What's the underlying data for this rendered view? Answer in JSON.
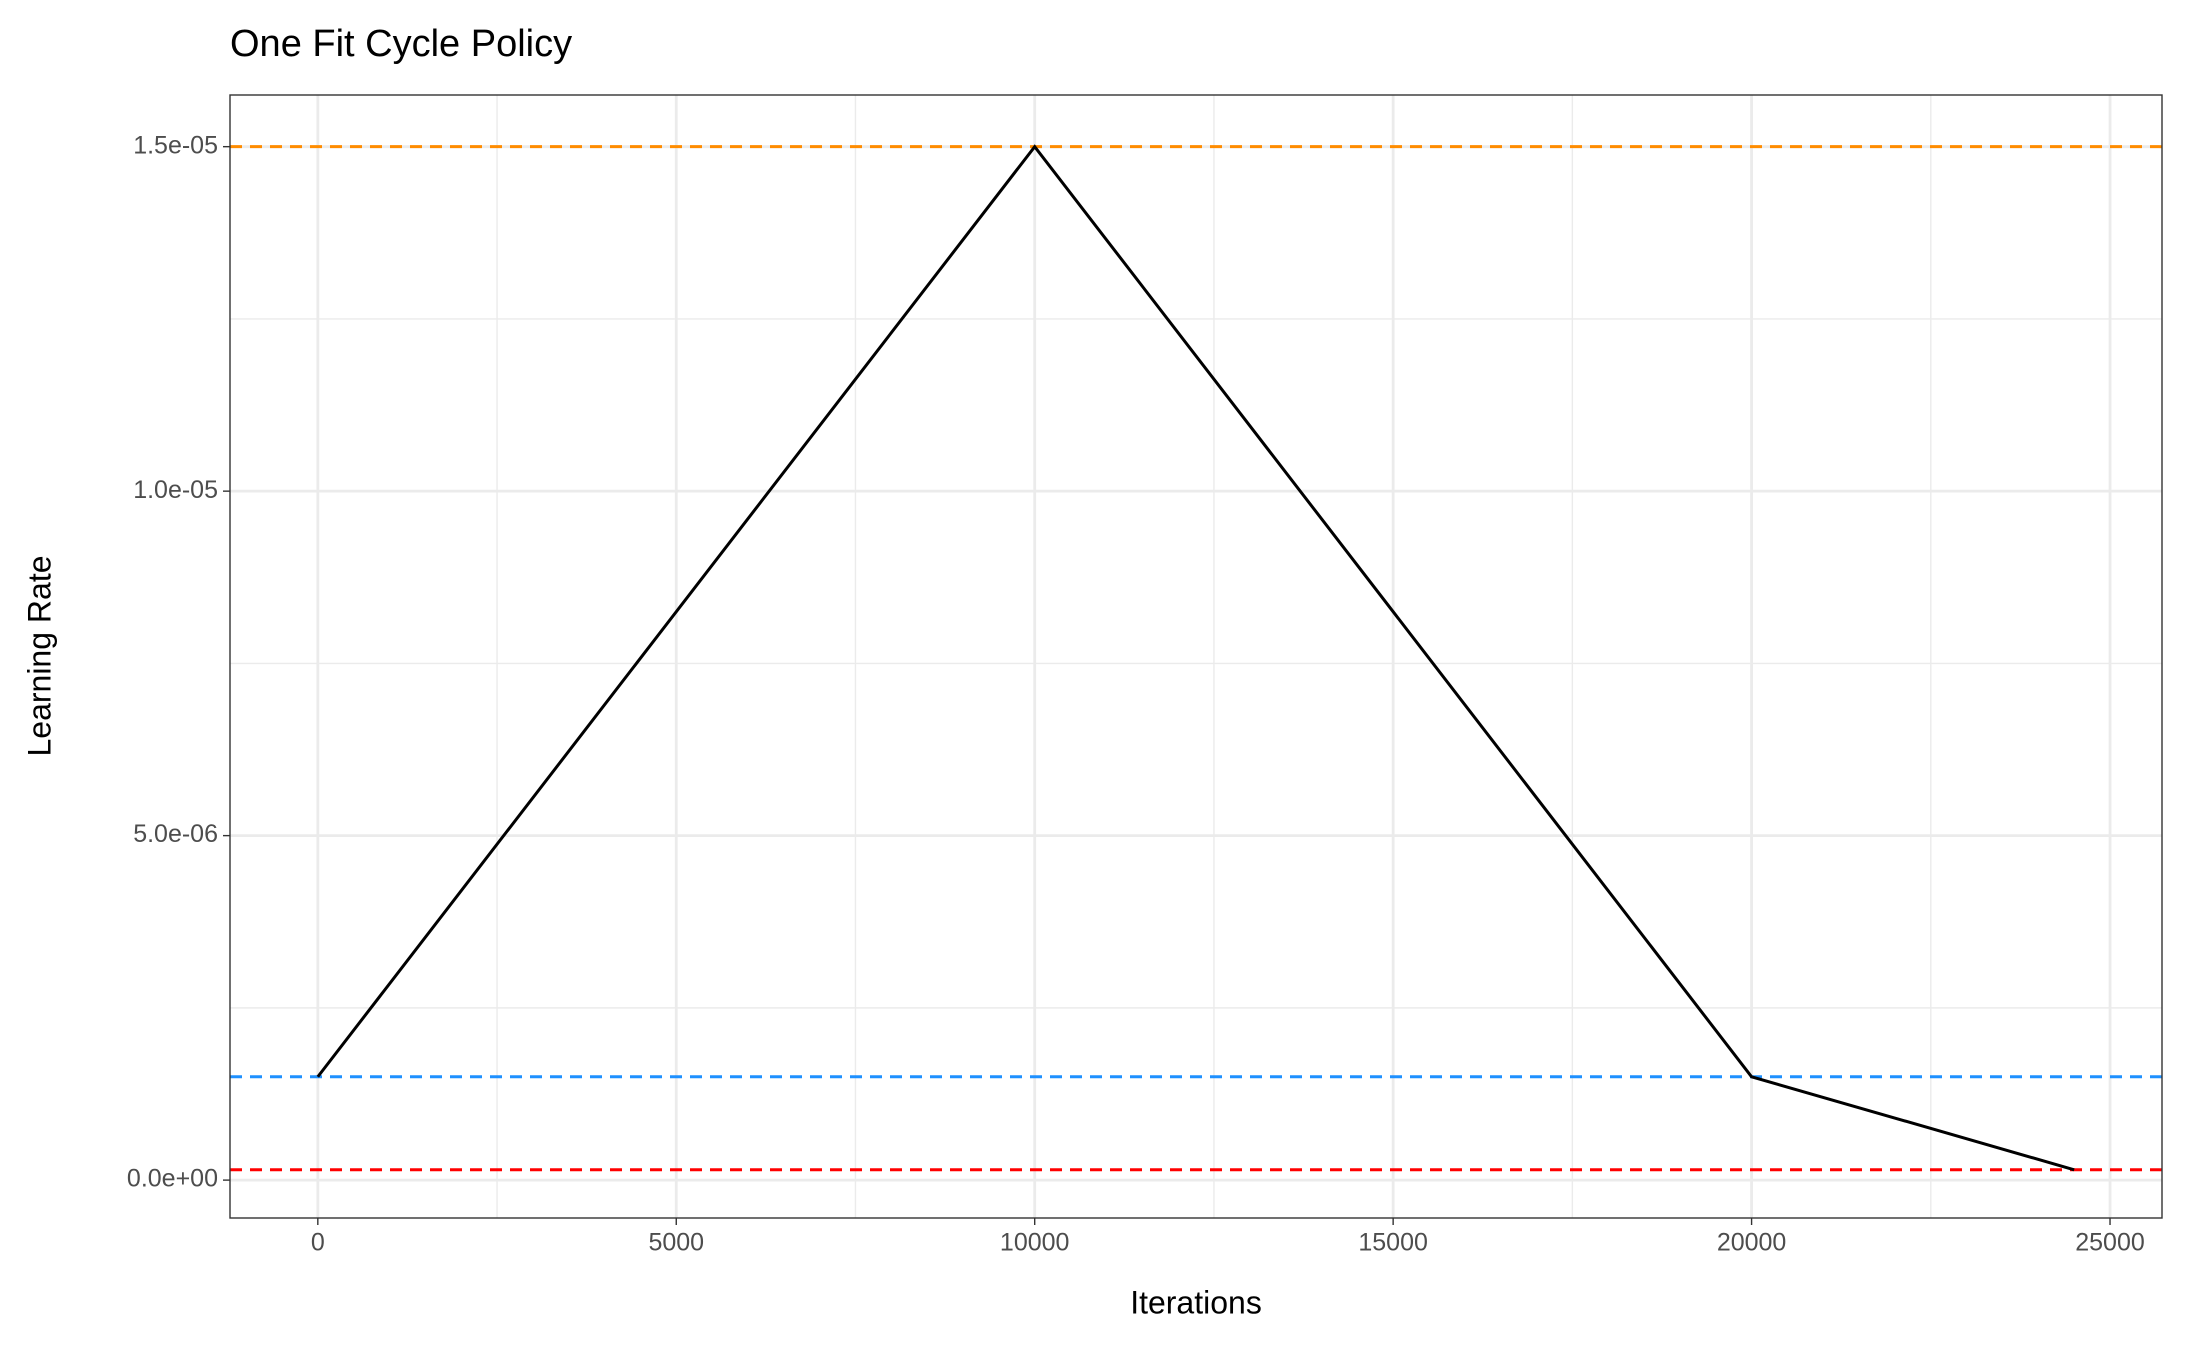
{
  "chart_data": {
    "type": "line",
    "title": "One Fit Cycle Policy",
    "x_label": "Iterations",
    "y_label": "Learning Rate",
    "x": [
      0,
      10000,
      20000,
      24500
    ],
    "series": [
      {
        "color": "#000000",
        "values": [
          1.5e-06,
          1.5e-05,
          1.5e-06,
          1.5e-07
        ]
      }
    ],
    "hlines": [
      {
        "value": 1.5e-05,
        "color": "#ff8c00"
      },
      {
        "value": 1.5e-06,
        "color": "#1e90ff"
      },
      {
        "value": 1.5e-07,
        "color": "#ff0000"
      }
    ],
    "xlim": [
      -1225,
      25725
    ],
    "ylim": [
      -5.5e-07,
      1.575e-05
    ],
    "xticks": [
      0,
      5000,
      10000,
      15000,
      20000,
      25000
    ],
    "yticks": [
      {
        "value": 0,
        "label": "0.0e+00"
      },
      {
        "value": 5e-06,
        "label": "5.0e-06"
      },
      {
        "value": 1e-05,
        "label": "1.0e-05"
      },
      {
        "value": 1.5e-05,
        "label": "1.5e-05"
      }
    ],
    "minor_xticks": [
      2500,
      7500,
      12500,
      17500,
      22500
    ],
    "minor_yticks": [
      2.5e-06,
      7.5e-06,
      1.25e-05
    ],
    "grid": true
  }
}
